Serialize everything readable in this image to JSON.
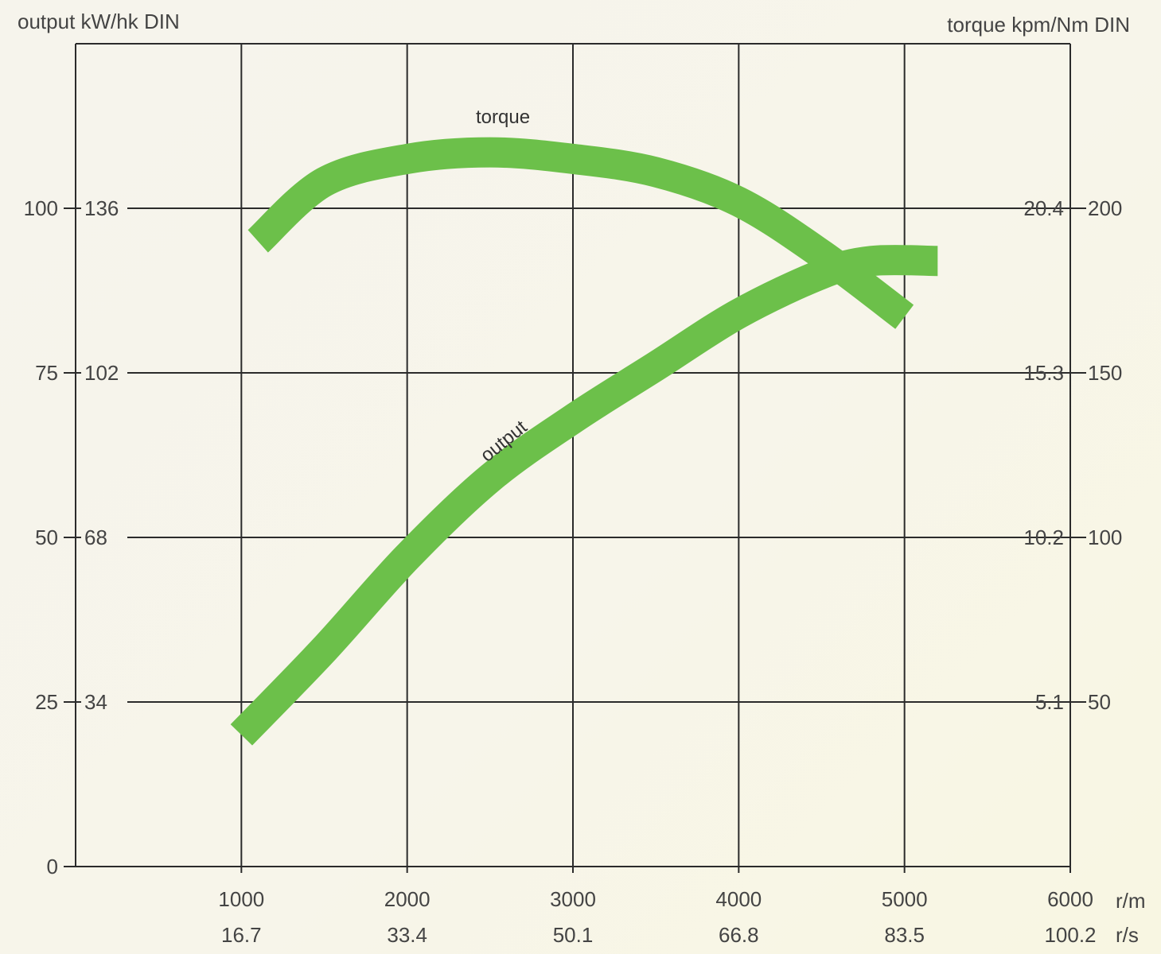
{
  "chart_data": {
    "type": "line",
    "left_axis_title": "output  kW/hk DIN",
    "right_axis_title": "torque  kpm/Nm DIN",
    "x_unit_rpm": "r/m",
    "x_unit_rps": "r/s",
    "x_ticks": [
      {
        "rpm": "1000",
        "rps": "16.7"
      },
      {
        "rpm": "2000",
        "rps": "33.4"
      },
      {
        "rpm": "3000",
        "rps": "50.1"
      },
      {
        "rpm": "4000",
        "rps": "66.8"
      },
      {
        "rpm": "5000",
        "rps": "83.5"
      },
      {
        "rpm": "6000",
        "rps": "100.2"
      }
    ],
    "left_ticks": [
      {
        "kw": "0",
        "hk": ""
      },
      {
        "kw": "25",
        "hk": "34"
      },
      {
        "kw": "50",
        "hk": "68"
      },
      {
        "kw": "75",
        "hk": "102"
      },
      {
        "kw": "100",
        "hk": "136"
      }
    ],
    "right_ticks": [
      {
        "kpm": "5.1",
        "nm": "50"
      },
      {
        "kpm": "10.2",
        "nm": "100"
      },
      {
        "kpm": "15.3",
        "nm": "150"
      },
      {
        "kpm": "20.4",
        "nm": "200"
      }
    ],
    "xlim": [
      0,
      6000
    ],
    "output_ylim_kw": [
      0,
      125
    ],
    "torque_ylim_nm": [
      0,
      250
    ],
    "grid": true,
    "series": [
      {
        "name": "torque",
        "axis": "right",
        "unit": "Nm",
        "color": "#6cc04a",
        "x": [
          1100,
          1500,
          2000,
          2500,
          3000,
          3500,
          4000,
          4500,
          5000
        ],
        "y": [
          190,
          208,
          215,
          217,
          215,
          211,
          202,
          186,
          167
        ]
      },
      {
        "name": "output",
        "axis": "left",
        "unit": "kW",
        "color": "#6cc04a",
        "x": [
          1000,
          1500,
          2000,
          2500,
          3000,
          3500,
          4000,
          4500,
          4800,
          5200
        ],
        "y": [
          20,
          33,
          47,
          59,
          68,
          76,
          84,
          90,
          92,
          92
        ]
      }
    ]
  }
}
